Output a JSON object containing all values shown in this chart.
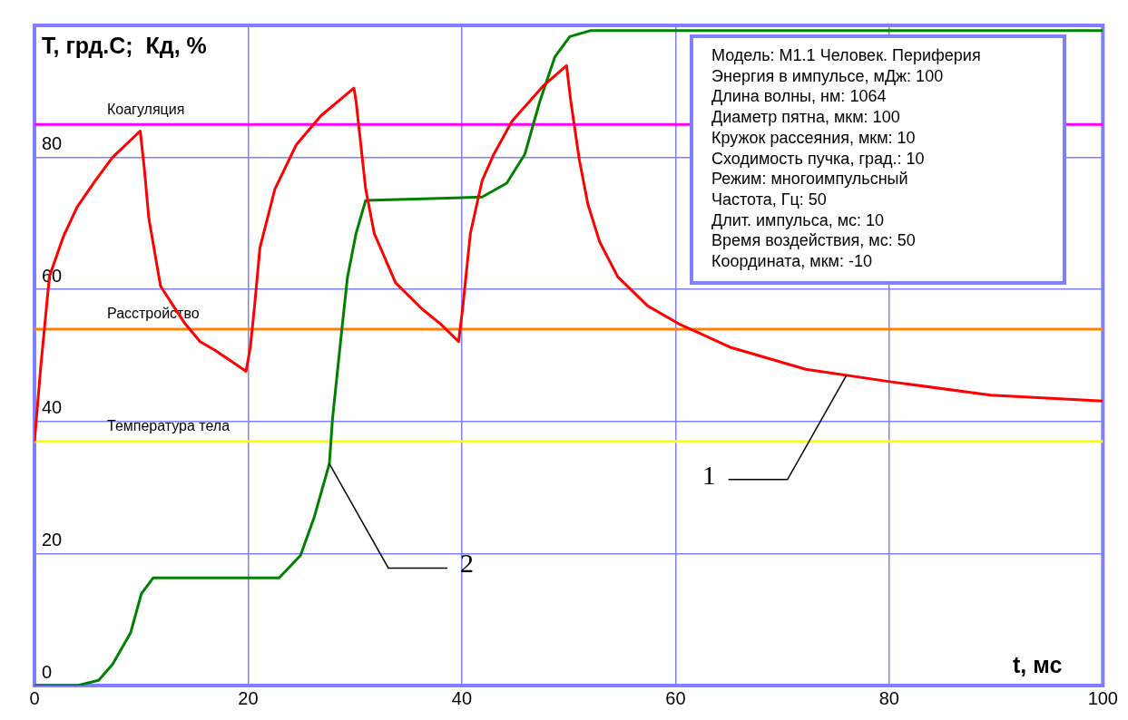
{
  "chart_data": {
    "type": "line",
    "ylabel": "T, грд.С;  Кд, %",
    "xlabel": "t, мс",
    "xlim": [
      0,
      100
    ],
    "xticks": [
      0,
      20,
      40,
      60,
      80,
      100
    ],
    "ylim": [
      0,
      100
    ],
    "yticks": [
      0,
      20,
      40,
      60,
      80
    ],
    "grid": true,
    "legend": false,
    "marker": "none",
    "line_style": "solid",
    "series": [
      {
        "color": "#ff0000",
        "x": [
          0,
          0.6,
          1.4,
          2.7,
          4,
          5.7,
          7.3,
          9.9,
          10.3,
          10.7,
          11.8,
          13,
          14.1,
          15.5,
          16.9,
          19.8,
          20.2,
          20.6,
          21.1,
          22.5,
          24.5,
          26.8,
          29.9,
          30.1,
          31,
          31.8,
          33.8,
          36.3,
          38,
          39.7,
          40.1,
          40.8,
          41.9,
          43,
          44.7,
          47.6,
          49.8,
          50.2,
          51,
          51.8,
          52.9,
          54.6,
          57.4,
          60.3,
          65.2,
          72.2,
          80.2,
          89.5,
          100
        ],
        "values": [
          37,
          48.5,
          62,
          68,
          72.5,
          76.5,
          80,
          84,
          78,
          70.8,
          60.5,
          57.5,
          54.8,
          52.1,
          50.8,
          47.6,
          51.2,
          57.5,
          66.3,
          75.2,
          81.9,
          86.3,
          90.5,
          88.5,
          75.2,
          68.5,
          61,
          57,
          54.8,
          52.1,
          57.5,
          68.5,
          76.5,
          80.5,
          85.5,
          90.8,
          93.9,
          88.5,
          79.6,
          72.9,
          67.2,
          61.9,
          57.5,
          54.8,
          51.2,
          47.9,
          46,
          44,
          43.1
        ]
      },
      {
        "color": "#008000",
        "x": [
          0,
          4,
          6,
          7.3,
          9,
          10,
          11.1,
          12.1,
          22.9,
          24.9,
          26.2,
          27.6,
          27.9,
          28.7,
          29.3,
          30.1,
          31,
          41.9,
          44.2,
          45.9,
          47.3,
          48.7,
          50.1,
          52,
          100
        ],
        "values": [
          0,
          0,
          0.8,
          3.2,
          8,
          13.9,
          16.3,
          16.3,
          16.3,
          19.7,
          25.6,
          33.6,
          40.5,
          52.9,
          61.9,
          68.5,
          73.5,
          74,
          76.1,
          80.5,
          88.5,
          95.2,
          98.3,
          99.2,
          99.2
        ]
      }
    ],
    "ref_lines": [
      {
        "axis": "y",
        "value": 85,
        "label": "Коагуляция",
        "color": "#ff00ff"
      },
      {
        "axis": "y",
        "value": 54,
        "label": "Расстройство",
        "color": "#ff8000"
      },
      {
        "axis": "y",
        "value": 37,
        "label": "Температура тела",
        "color": "#ffff00"
      }
    ],
    "annotations": [
      {
        "text": "1",
        "x": 76,
        "y": 47
      },
      {
        "text": "2",
        "x": 27.6,
        "y": 33.6
      },
      "Модель: М1.1 Человек. Периферия",
      "Энергия в импульсе, мДж: 100",
      "Длина волны, нм: 1064",
      "Диаметр пятна, мкм: 100",
      "Кружок рассеяния, мкм: 10",
      "Сходимость пучка, град.: 10",
      "Режим: многоимпульсный",
      "Частота, Гц: 50",
      "Длит. импульса, мс: 10",
      "Время воздействия, мс: 50",
      "Координата, мкм: -10"
    ]
  }
}
